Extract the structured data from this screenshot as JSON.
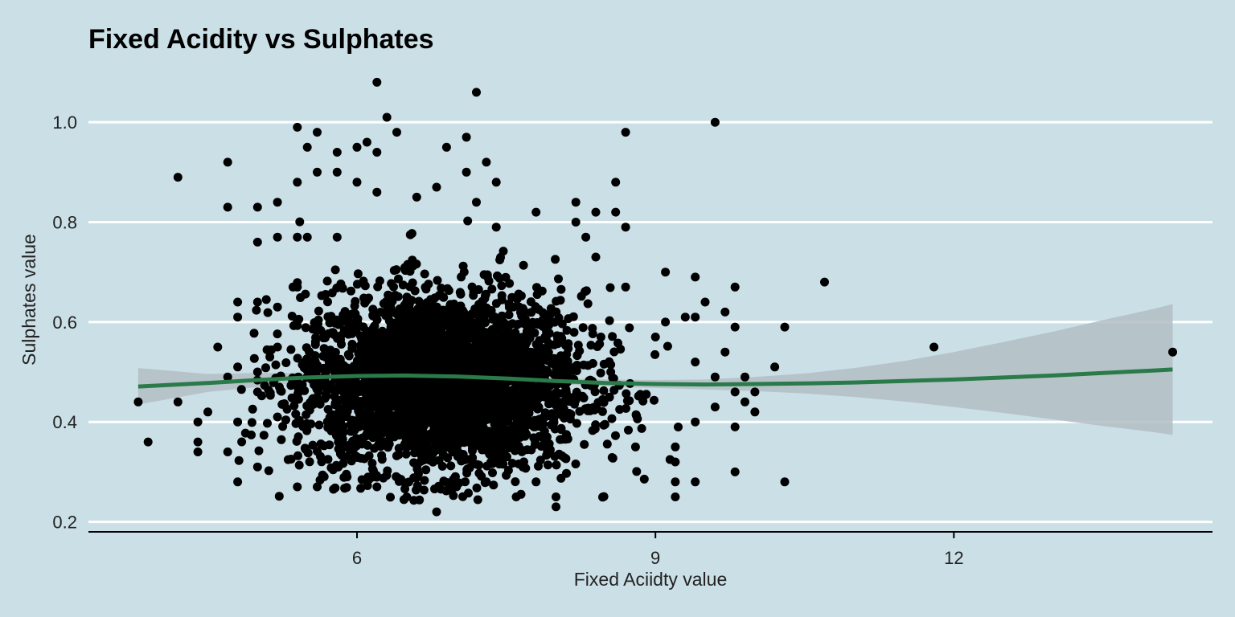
{
  "chart_data": {
    "type": "scatter",
    "title": "Fixed Acidity vs Sulphates",
    "xlabel": "Fixed Aciidty value",
    "ylabel": "Sulphates value",
    "xlim": [
      3.3,
      14.6
    ],
    "ylim": [
      0.18,
      1.1
    ],
    "x_ticks": [
      6,
      9,
      12
    ],
    "x_tick_labels": [
      "6",
      "9",
      "12"
    ],
    "y_ticks": [
      0.2,
      0.4,
      0.6,
      0.8,
      1.0
    ],
    "y_tick_labels": [
      "0.2",
      "0.4",
      "0.6",
      "0.8",
      "1.0"
    ],
    "grid": "horizontal major lines only",
    "legend": "none",
    "points": [
      [
        3.8,
        0.44
      ],
      [
        3.9,
        0.36
      ],
      [
        4.2,
        0.89
      ],
      [
        4.2,
        0.44
      ],
      [
        4.4,
        0.4
      ],
      [
        4.4,
        0.36
      ],
      [
        4.4,
        0.34
      ],
      [
        4.5,
        0.42
      ],
      [
        4.6,
        0.55
      ],
      [
        4.7,
        0.92
      ],
      [
        4.7,
        0.83
      ],
      [
        4.7,
        0.49
      ],
      [
        4.7,
        0.34
      ],
      [
        4.8,
        0.64
      ],
      [
        4.8,
        0.61
      ],
      [
        4.8,
        0.51
      ],
      [
        4.8,
        0.4
      ],
      [
        4.8,
        0.28
      ],
      [
        5.0,
        0.83
      ],
      [
        5.0,
        0.76
      ],
      [
        5.0,
        0.64
      ],
      [
        5.0,
        0.5
      ],
      [
        5.0,
        0.46
      ],
      [
        5.0,
        0.31
      ],
      [
        5.2,
        0.84
      ],
      [
        5.2,
        0.77
      ],
      [
        5.2,
        0.63
      ],
      [
        5.2,
        0.55
      ],
      [
        5.2,
        0.41
      ],
      [
        5.4,
        0.99
      ],
      [
        5.4,
        0.88
      ],
      [
        5.4,
        0.77
      ],
      [
        5.4,
        0.67
      ],
      [
        5.4,
        0.27
      ],
      [
        5.5,
        0.95
      ],
      [
        5.5,
        0.77
      ],
      [
        5.6,
        0.98
      ],
      [
        5.6,
        0.9
      ],
      [
        5.6,
        0.27
      ],
      [
        5.8,
        0.94
      ],
      [
        5.8,
        0.9
      ],
      [
        5.8,
        0.77
      ],
      [
        5.9,
        0.29
      ],
      [
        5.9,
        0.42
      ],
      [
        6.0,
        0.95
      ],
      [
        6.0,
        0.88
      ],
      [
        6.0,
        0.33
      ],
      [
        6.1,
        0.96
      ],
      [
        6.2,
        0.94
      ],
      [
        6.2,
        0.86
      ],
      [
        6.2,
        0.27
      ],
      [
        6.2,
        1.08
      ],
      [
        6.3,
        1.01
      ],
      [
        6.4,
        0.98
      ],
      [
        6.5,
        0.25
      ],
      [
        6.6,
        0.85
      ],
      [
        6.8,
        0.22
      ],
      [
        6.8,
        0.87
      ],
      [
        6.9,
        0.95
      ],
      [
        7.0,
        0.27
      ],
      [
        7.1,
        0.97
      ],
      [
        7.1,
        0.9
      ],
      [
        7.2,
        1.06
      ],
      [
        7.2,
        0.84
      ],
      [
        7.3,
        0.92
      ],
      [
        7.3,
        0.28
      ],
      [
        7.4,
        0.88
      ],
      [
        7.4,
        0.79
      ],
      [
        7.6,
        0.25
      ],
      [
        7.8,
        0.82
      ],
      [
        7.8,
        0.28
      ],
      [
        8.0,
        0.23
      ],
      [
        8.0,
        0.25
      ],
      [
        8.2,
        0.84
      ],
      [
        8.2,
        0.8
      ],
      [
        8.3,
        0.77
      ],
      [
        8.4,
        0.82
      ],
      [
        8.4,
        0.73
      ],
      [
        8.6,
        0.88
      ],
      [
        8.6,
        0.82
      ],
      [
        8.7,
        0.98
      ],
      [
        8.7,
        0.79
      ],
      [
        8.7,
        0.67
      ],
      [
        8.8,
        0.35
      ],
      [
        9.0,
        0.57
      ],
      [
        9.1,
        0.7
      ],
      [
        9.1,
        0.6
      ],
      [
        9.2,
        0.25
      ],
      [
        9.2,
        0.28
      ],
      [
        9.2,
        0.32
      ],
      [
        9.2,
        0.35
      ],
      [
        9.3,
        0.61
      ],
      [
        9.4,
        0.69
      ],
      [
        9.4,
        0.61
      ],
      [
        9.4,
        0.52
      ],
      [
        9.4,
        0.4
      ],
      [
        9.4,
        0.28
      ],
      [
        9.5,
        0.64
      ],
      [
        9.6,
        1.0
      ],
      [
        9.6,
        0.49
      ],
      [
        9.6,
        0.43
      ],
      [
        9.7,
        0.62
      ],
      [
        9.7,
        0.54
      ],
      [
        9.8,
        0.67
      ],
      [
        9.8,
        0.59
      ],
      [
        9.8,
        0.46
      ],
      [
        9.8,
        0.39
      ],
      [
        9.8,
        0.3
      ],
      [
        9.9,
        0.44
      ],
      [
        9.9,
        0.49
      ],
      [
        10.0,
        0.46
      ],
      [
        10.0,
        0.42
      ],
      [
        10.2,
        0.51
      ],
      [
        10.3,
        0.59
      ],
      [
        10.3,
        0.28
      ],
      [
        10.7,
        0.68
      ],
      [
        11.8,
        0.55
      ],
      [
        14.2,
        0.54
      ]
    ],
    "smooth_line": {
      "x": [
        3.8,
        4.5,
        5.0,
        5.5,
        6.0,
        6.5,
        7.0,
        7.5,
        8.0,
        8.5,
        9.0,
        9.5,
        10.0,
        10.5,
        11.0,
        11.5,
        12.0,
        12.5,
        13.0,
        13.5,
        14.0,
        14.2
      ],
      "y": [
        0.471,
        0.478,
        0.484,
        0.489,
        0.492,
        0.493,
        0.491,
        0.487,
        0.482,
        0.478,
        0.476,
        0.475,
        0.476,
        0.477,
        0.479,
        0.482,
        0.485,
        0.489,
        0.493,
        0.498,
        0.503,
        0.505
      ],
      "ci_lower": [
        0.435,
        0.46,
        0.47,
        0.48,
        0.486,
        0.488,
        0.486,
        0.481,
        0.476,
        0.471,
        0.468,
        0.465,
        0.462,
        0.457,
        0.45,
        0.441,
        0.43,
        0.418,
        0.405,
        0.392,
        0.38,
        0.374
      ],
      "ci_upper": [
        0.508,
        0.496,
        0.498,
        0.498,
        0.498,
        0.498,
        0.496,
        0.493,
        0.488,
        0.485,
        0.484,
        0.485,
        0.49,
        0.497,
        0.508,
        0.522,
        0.54,
        0.56,
        0.581,
        0.604,
        0.626,
        0.636
      ]
    },
    "colors": {
      "background": "#cbdfe6",
      "points": "#000000",
      "smooth_line": "#2a7a4a",
      "ci_band": "#b3bec3",
      "grid": "#ffffff"
    }
  }
}
